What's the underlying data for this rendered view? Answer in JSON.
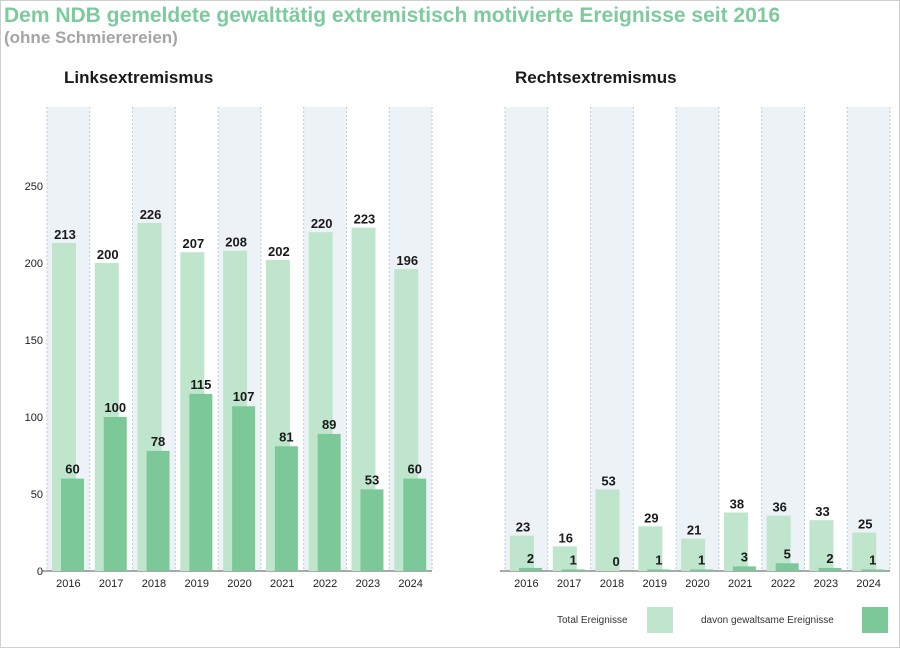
{
  "header": {
    "title": "Dem NDB gemeldete gewalttätig extremistisch motivierte Ereignisse seit 2016",
    "subtitle": "(ohne Schmierereien)"
  },
  "colors": {
    "total": "#bfe5cd",
    "violent": "#7cc898",
    "band": "#edf2f7",
    "band_border": "#b8cde0",
    "axis": "#555555"
  },
  "legend": {
    "total_label": "Total Ereignisse",
    "violent_label": "davon gewaltsame Ereignisse"
  },
  "chart_data": [
    {
      "type": "bar",
      "title": "Linksextremismus",
      "categories": [
        "2016",
        "2017",
        "2018",
        "2019",
        "2020",
        "2021",
        "2022",
        "2023",
        "2024"
      ],
      "series": [
        {
          "name": "Total Ereignisse",
          "values": [
            213,
            200,
            226,
            207,
            208,
            202,
            220,
            223,
            196
          ]
        },
        {
          "name": "davon gewaltsame Ereignisse",
          "values": [
            60,
            100,
            78,
            115,
            107,
            81,
            89,
            53,
            60
          ]
        }
      ],
      "yticks": [
        0,
        50,
        100,
        150,
        200,
        250
      ],
      "ylim": [
        0,
        300
      ],
      "grid": false
    },
    {
      "type": "bar",
      "title": "Rechtsextremismus",
      "categories": [
        "2016",
        "2017",
        "2018",
        "2019",
        "2020",
        "2021",
        "2022",
        "2023",
        "2024"
      ],
      "series": [
        {
          "name": "Total Ereignisse",
          "values": [
            23,
            16,
            53,
            29,
            21,
            38,
            36,
            33,
            25
          ]
        },
        {
          "name": "davon gewaltsame Ereignisse",
          "values": [
            2,
            1,
            0,
            1,
            1,
            3,
            5,
            2,
            1
          ]
        }
      ],
      "ylim": [
        0,
        300
      ],
      "grid": false
    }
  ]
}
